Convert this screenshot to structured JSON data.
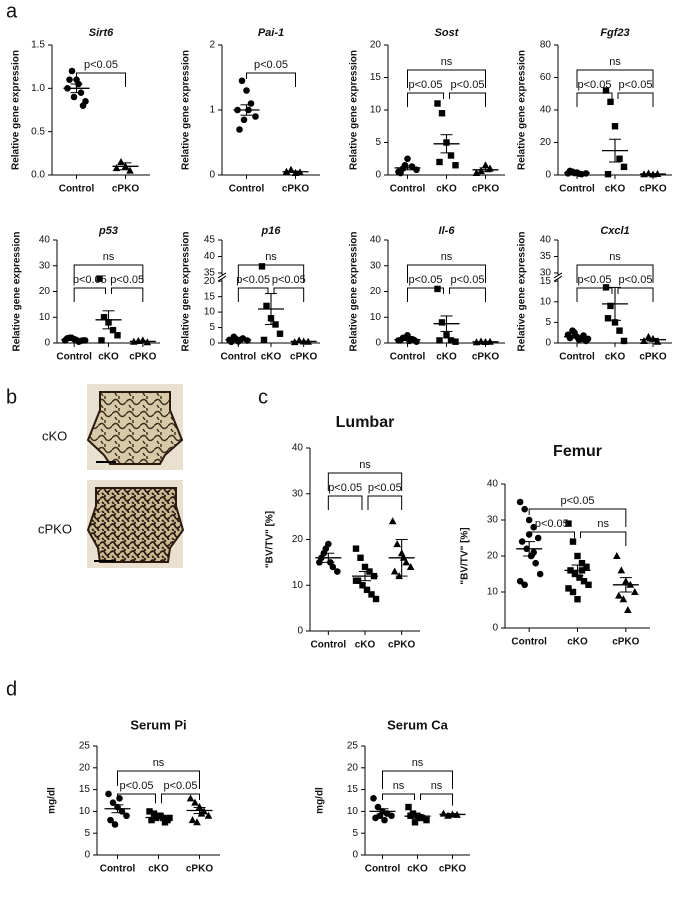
{
  "panel_labels": [
    "a",
    "b",
    "c",
    "d"
  ],
  "images": [
    {
      "label": "cKO"
    },
    {
      "label": "cPKO"
    }
  ],
  "chart_data": [
    {
      "type": "dot",
      "title": "Sirt6",
      "title_italic": true,
      "y_label": "Relative gene expression",
      "categories": [
        "Control",
        "cPKO"
      ],
      "markers": [
        "circle",
        "triangle"
      ],
      "points": [
        [
          1.0,
          1.2,
          1.1,
          0.95,
          0.85,
          1.1,
          0.9,
          1.05,
          0.8
        ],
        [
          0.08,
          0.15,
          0.1,
          0.05
        ]
      ],
      "means": [
        1.0,
        0.1
      ],
      "errors": [
        0.05,
        0.04
      ],
      "ylim": [
        0,
        1.5
      ],
      "yticks": [
        {
          "value": 0,
          "label": "0.0"
        },
        0.5,
        {
          "value": 1,
          "label": "1.0"
        },
        1.5
      ],
      "comparisons": [
        {
          "groups": [
            0,
            1
          ],
          "label": "p<0.05"
        }
      ]
    },
    {
      "type": "dot",
      "title": "Pai-1",
      "title_italic": true,
      "y_label": "Relative gene expression",
      "categories": [
        "Control",
        "cPKO"
      ],
      "markers": [
        "circle",
        "triangle"
      ],
      "points": [
        [
          1.0,
          1.45,
          1.3,
          1.1,
          0.9,
          0.7,
          0.85,
          1.0
        ],
        [
          0.05,
          0.08,
          0.03,
          0.04
        ]
      ],
      "means": [
        1.0,
        0.05
      ],
      "errors": [
        0.08,
        0.01
      ],
      "ylim": [
        0,
        2
      ],
      "yticks": [
        0,
        1,
        2
      ],
      "comparisons": [
        {
          "groups": [
            0,
            1
          ],
          "label": "p<0.05"
        }
      ]
    },
    {
      "type": "dot",
      "title": "Sost",
      "title_italic": true,
      "y_label": "Relative gene expression",
      "categories": [
        "Control",
        "cKO",
        "cPKO"
      ],
      "markers": [
        "circle",
        "square",
        "triangle"
      ],
      "points": [
        [
          0.5,
          1,
          2.5,
          1.3,
          0.8,
          0.3,
          1.5
        ],
        [
          11,
          9.5,
          5,
          3,
          1.5,
          2
        ],
        [
          0.3,
          0.6,
          1.5,
          1
        ]
      ],
      "means": [
        1.1,
        4.8,
        0.8
      ],
      "errors": [
        0.3,
        1.4,
        0.3
      ],
      "ylim": [
        0,
        20
      ],
      "yticks": [
        0,
        5,
        10,
        15,
        20
      ],
      "comparisons": [
        {
          "groups": [
            0,
            2
          ],
          "label": "ns"
        },
        {
          "groups": [
            0,
            1
          ],
          "label": "p<0.05"
        },
        {
          "groups": [
            1,
            2
          ],
          "label": "p<0.05"
        }
      ]
    },
    {
      "type": "dot",
      "title": "Fgf23",
      "title_italic": true,
      "y_label": "Relative gene expression",
      "categories": [
        "Control",
        "cKO",
        "cPKO"
      ],
      "markers": [
        "circle",
        "square",
        "triangle"
      ],
      "points": [
        [
          1,
          2,
          1.5,
          0.5,
          1,
          2.5,
          1.2,
          0.8
        ],
        [
          52,
          45,
          30,
          10,
          5,
          0.5
        ],
        [
          0.5,
          1,
          0.3,
          0.6
        ]
      ],
      "means": [
        1.3,
        15,
        0.6
      ],
      "errors": [
        0.2,
        7,
        0.2
      ],
      "ylim": [
        0,
        80
      ],
      "yticks": [
        0,
        20,
        40,
        60,
        80
      ],
      "comparisons": [
        {
          "groups": [
            0,
            2
          ],
          "label": "ns"
        },
        {
          "groups": [
            0,
            1
          ],
          "label": "p<0.05"
        },
        {
          "groups": [
            1,
            2
          ],
          "label": "p<0.05"
        }
      ]
    },
    {
      "type": "dot",
      "title": "p53",
      "title_italic": true,
      "y_label": "Relative gene expression",
      "categories": [
        "Control",
        "cKO",
        "cPKO"
      ],
      "markers": [
        "circle",
        "square",
        "triangle"
      ],
      "points": [
        [
          1,
          2,
          1.5,
          0.5,
          1,
          1.8,
          2,
          1.2,
          0.8,
          1
        ],
        [
          25,
          10,
          8,
          5,
          3,
          1
        ],
        [
          0.5,
          0.8,
          1,
          0.3
        ]
      ],
      "means": [
        1.2,
        9,
        0.6
      ],
      "errors": [
        0.2,
        3.5,
        0.2
      ],
      "ylim": [
        0,
        40
      ],
      "yticks": [
        0,
        10,
        20,
        30,
        40
      ],
      "comparisons": [
        {
          "groups": [
            0,
            2
          ],
          "label": "ns"
        },
        {
          "groups": [
            0,
            1
          ],
          "label": "p<0.05"
        },
        {
          "groups": [
            1,
            2
          ],
          "label": "p<0.05"
        }
      ]
    },
    {
      "type": "dot",
      "title": "p16",
      "title_italic": true,
      "y_label": "Relative gene expression",
      "categories": [
        "Control",
        "cKO",
        "cPKO"
      ],
      "markers": [
        "circle",
        "square",
        "triangle"
      ],
      "points": [
        [
          1,
          2,
          0.5,
          1.5,
          0.8,
          0.4,
          1.3,
          1
        ],
        [
          37,
          12,
          8,
          6,
          3,
          1
        ],
        [
          0.3,
          0.8,
          0.5,
          0.4
        ]
      ],
      "means": [
        1,
        11,
        0.5
      ],
      "errors": [
        0.2,
        5,
        0.1
      ],
      "ylim": [
        0,
        45
      ],
      "ybreak": [
        20,
        35
      ],
      "yticks": [
        0,
        5,
        10,
        15,
        20,
        35,
        40,
        45
      ],
      "comparisons": [
        {
          "groups": [
            0,
            2
          ],
          "label": "ns"
        },
        {
          "groups": [
            0,
            1
          ],
          "label": "p<0.05"
        },
        {
          "groups": [
            1,
            2
          ],
          "label": "p<0.05"
        }
      ]
    },
    {
      "type": "dot",
      "title": "Il-6",
      "title_italic": true,
      "y_label": "Relative gene expression",
      "categories": [
        "Control",
        "cKO",
        "cPKO"
      ],
      "markers": [
        "circle",
        "square",
        "triangle"
      ],
      "points": [
        [
          1,
          2,
          3,
          1.5,
          0.5,
          1,
          2,
          0.8,
          1.2
        ],
        [
          21,
          8,
          3,
          1,
          0.5,
          1
        ],
        [
          0.3,
          0.6,
          0.4,
          0.5
        ]
      ],
      "means": [
        1.3,
        7.5,
        0.5
      ],
      "errors": [
        0.3,
        3,
        0.1
      ],
      "ylim": [
        0,
        40
      ],
      "yticks": [
        0,
        10,
        20,
        30,
        40
      ],
      "comparisons": [
        {
          "groups": [
            0,
            2
          ],
          "label": "ns"
        },
        {
          "groups": [
            0,
            1
          ],
          "label": "p<0.05"
        },
        {
          "groups": [
            1,
            2
          ],
          "label": "p<0.05"
        }
      ]
    },
    {
      "type": "dot",
      "title": "Cxcl1",
      "title_italic": true,
      "y_label": "Relative gene expression",
      "categories": [
        "Control",
        "cKO",
        "cPKO"
      ],
      "markers": [
        "circle",
        "square",
        "triangle"
      ],
      "points": [
        [
          2,
          3,
          1.5,
          1,
          0.5,
          1.2,
          2.5,
          0.8,
          1.8,
          1
        ],
        [
          13.5,
          9,
          5,
          3,
          0.5,
          6
        ],
        [
          0.5,
          1.5,
          1,
          0.3
        ]
      ],
      "means": [
        1.5,
        9.5,
        0.8
      ],
      "errors": [
        0.3,
        4,
        0.3
      ],
      "ylim": [
        0,
        40
      ],
      "ybreak": [
        15,
        30
      ],
      "yticks": [
        0,
        5,
        10,
        15,
        30,
        35,
        40
      ],
      "comparisons": [
        {
          "groups": [
            0,
            2
          ],
          "label": "ns"
        },
        {
          "groups": [
            0,
            1
          ],
          "label": "p<0.05"
        },
        {
          "groups": [
            1,
            2
          ],
          "label": "p<0.05"
        }
      ]
    },
    {
      "type": "dot",
      "title": "Lumbar",
      "title_italic": false,
      "y_label": "\"BV/TV\" [%]",
      "categories": [
        "Control",
        "cKO",
        "cPKO"
      ],
      "markers": [
        "circle",
        "square",
        "triangle"
      ],
      "points": [
        [
          15,
          17,
          19,
          14,
          13,
          16,
          18,
          15
        ],
        [
          18,
          16,
          14,
          13,
          12,
          11,
          10,
          9,
          8,
          7,
          11
        ],
        [
          24,
          19,
          17,
          15,
          14,
          13,
          12,
          16
        ]
      ],
      "means": [
        16,
        12,
        16
      ],
      "errors": [
        1,
        1,
        4
      ],
      "ylim": [
        0,
        40
      ],
      "yticks": [
        0,
        10,
        20,
        30,
        40
      ],
      "comparisons": [
        {
          "groups": [
            0,
            2
          ],
          "label": "ns"
        },
        {
          "groups": [
            0,
            1
          ],
          "label": "p<0.05"
        },
        {
          "groups": [
            1,
            2
          ],
          "label": "p<0.05"
        }
      ]
    },
    {
      "type": "dot",
      "title": "Femur",
      "title_italic": false,
      "y_label": "\"BV/TV\" [%]",
      "categories": [
        "Control",
        "cKO",
        "cPKO"
      ],
      "markers": [
        "circle",
        "square",
        "triangle"
      ],
      "points": [
        [
          35,
          33,
          30,
          28,
          25,
          24,
          22,
          20,
          18,
          15,
          13,
          12,
          26,
          21
        ],
        [
          29,
          24,
          20,
          18,
          17,
          16,
          15,
          14,
          13,
          12,
          11,
          10,
          8,
          16
        ],
        [
          20,
          16,
          13,
          12,
          10,
          9,
          8,
          5
        ]
      ],
      "means": [
        22,
        16,
        12
      ],
      "errors": [
        2,
        1.5,
        2
      ],
      "ylim": [
        0,
        40
      ],
      "yticks": [
        0,
        10,
        20,
        30,
        40
      ],
      "comparisons": [
        {
          "groups": [
            0,
            2
          ],
          "label": "p<0.05"
        },
        {
          "groups": [
            0,
            1
          ],
          "label": "p<0.05"
        },
        {
          "groups": [
            1,
            2
          ],
          "label": "ns"
        }
      ]
    },
    {
      "type": "dot",
      "title": "Serum Pi",
      "title_italic": false,
      "y_label": "mg/dl",
      "categories": [
        "Control",
        "cKO",
        "cPKO"
      ],
      "markers": [
        "circle",
        "square",
        "triangle"
      ],
      "points": [
        [
          14,
          12,
          11,
          10,
          9,
          8,
          7,
          13
        ],
        [
          10,
          9.5,
          9,
          8.5,
          8,
          8,
          8.5,
          9,
          7.5,
          8.5
        ],
        [
          13,
          12,
          11,
          10,
          9,
          8,
          7.5,
          9.5
        ]
      ],
      "means": [
        10.6,
        8.6,
        10.2
      ],
      "errors": [
        0.9,
        0.3,
        0.7
      ],
      "ylim": [
        0,
        25
      ],
      "yticks": [
        0,
        5,
        10,
        15,
        20,
        25
      ],
      "comparisons": [
        {
          "groups": [
            0,
            2
          ],
          "label": "ns"
        },
        {
          "groups": [
            0,
            1
          ],
          "label": "p<0.05"
        },
        {
          "groups": [
            1,
            2
          ],
          "label": "p<0.05"
        }
      ]
    },
    {
      "type": "dot",
      "title": "Serum Ca",
      "title_italic": false,
      "y_label": "mg/dl",
      "categories": [
        "Control",
        "cKO",
        "cPKO"
      ],
      "markers": [
        "circle",
        "square",
        "triangle"
      ],
      "points": [
        [
          13,
          11,
          10,
          9.5,
          9,
          8.5,
          9,
          8
        ],
        [
          11,
          9.5,
          9,
          8.5,
          8,
          9,
          7.5,
          8.5
        ],
        [
          9.5,
          9,
          9.3,
          9.2
        ]
      ],
      "means": [
        10,
        8.9,
        9.3
      ],
      "errors": [
        0.6,
        0.4,
        0.2
      ],
      "ylim": [
        0,
        25
      ],
      "yticks": [
        0,
        5,
        10,
        15,
        20,
        25
      ],
      "comparisons": [
        {
          "groups": [
            0,
            2
          ],
          "label": "ns"
        },
        {
          "groups": [
            0,
            1
          ],
          "label": "ns"
        },
        {
          "groups": [
            1,
            2
          ],
          "label": "ns"
        }
      ]
    }
  ]
}
